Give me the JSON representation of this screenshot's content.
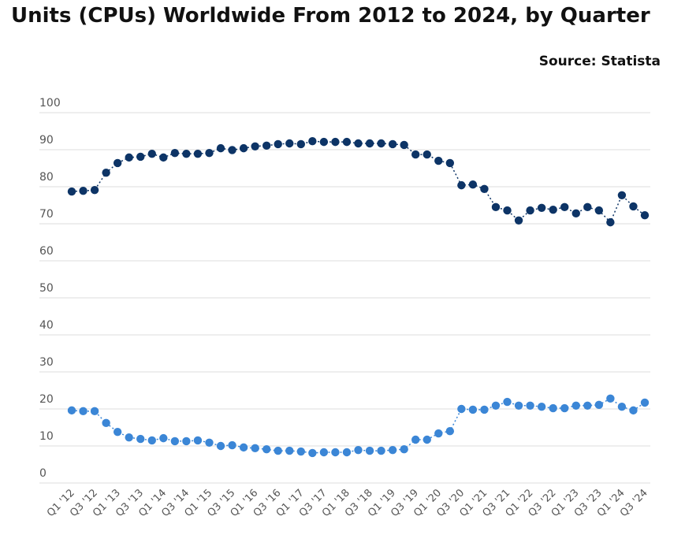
{
  "chart_data": {
    "type": "line",
    "title": "Units (CPUs) Worldwide From 2012 to 2024, by Quarter",
    "source": "Source: Statista",
    "categories": [
      "Q1 '12",
      null,
      "Q3 '12",
      null,
      "Q1 '13",
      null,
      "Q3 '13",
      null,
      "Q1 '14",
      null,
      "Q3 '14",
      null,
      "Q1 '15",
      null,
      "Q3 '15",
      null,
      "Q1 '16",
      null,
      "Q3 '16",
      null,
      "Q1 '17",
      null,
      "Q3 '17",
      null,
      "Q1 '18",
      null,
      "Q3 '18",
      null,
      "Q1 '19",
      null,
      "Q3 '19",
      null,
      "Q1 '20",
      null,
      "Q3 '20",
      null,
      "Q1 '21",
      null,
      "Q3 '21",
      null,
      "Q1 '22",
      null,
      "Q3 '22",
      null,
      "Q1 '23",
      null,
      "Q3 '23",
      null,
      "Q1 '24",
      null,
      "Q3 '24"
    ],
    "series": [
      {
        "color": "#0d3466",
        "values": [
          78.7,
          78.9,
          79.1,
          83.8,
          86.4,
          87.9,
          88.1,
          88.9,
          87.9,
          89.1,
          88.9,
          88.9,
          89.1,
          90.4,
          89.9,
          90.4,
          90.9,
          91.1,
          91.5,
          91.7,
          91.5,
          92.3,
          92.1,
          92.1,
          92.1,
          91.7,
          91.7,
          91.7,
          91.5,
          91.3,
          88.7,
          88.7,
          87.0,
          86.4,
          80.4,
          80.6,
          79.4,
          74.5,
          73.6,
          70.9,
          73.6,
          74.3,
          73.8,
          74.5,
          72.8,
          74.5,
          73.6,
          70.4,
          77.7,
          74.7,
          72.3
        ]
      },
      {
        "color": "#3b86d6",
        "values": [
          19.6,
          19.4,
          19.4,
          16.2,
          13.8,
          12.3,
          11.9,
          11.5,
          12.1,
          11.3,
          11.3,
          11.5,
          10.9,
          10.0,
          10.2,
          9.6,
          9.4,
          9.1,
          8.7,
          8.7,
          8.5,
          8.1,
          8.3,
          8.3,
          8.3,
          8.9,
          8.7,
          8.7,
          8.9,
          9.1,
          11.7,
          11.7,
          13.4,
          14.0,
          20.0,
          19.8,
          19.8,
          20.9,
          21.9,
          20.9,
          20.9,
          20.6,
          20.2,
          20.2,
          20.9,
          20.9,
          21.1,
          22.8,
          20.6,
          19.6,
          21.7
        ]
      }
    ],
    "ylim": [
      0,
      100
    ],
    "yticks": [
      0,
      10,
      20,
      30,
      40,
      50,
      60,
      70,
      80,
      90,
      100
    ],
    "grid": true
  }
}
